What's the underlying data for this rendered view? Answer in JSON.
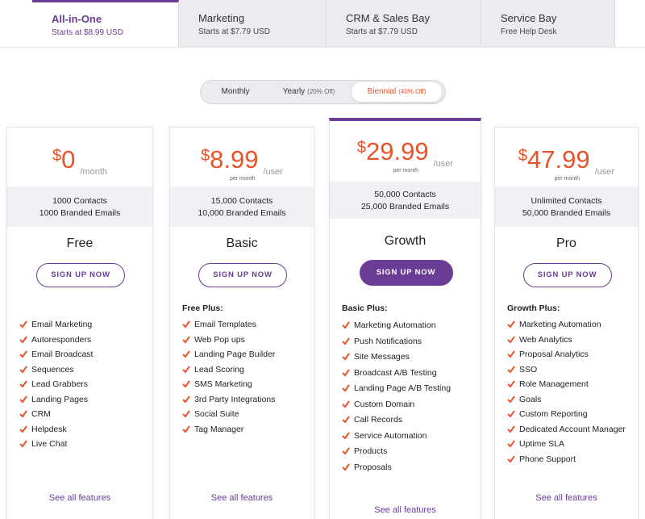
{
  "tabs": [
    {
      "title": "All-in-One",
      "subtitle": "Starts at $8.99 USD"
    },
    {
      "title": "Marketing",
      "subtitle": "Starts at $7.79 USD"
    },
    {
      "title": "CRM & Sales Bay",
      "subtitle": "Starts at $7.79 USD"
    },
    {
      "title": "Service Bay",
      "subtitle": "Free Help Desk"
    }
  ],
  "billing": [
    {
      "label": "Monthly"
    },
    {
      "label": "Yearly",
      "discount": "(20% Off)"
    },
    {
      "label": "Biennial",
      "discount": "(40% Off)"
    }
  ],
  "plans": [
    {
      "currency": "$",
      "price": "0",
      "unit": "/month",
      "contacts": "1000 Contacts",
      "emails": "1000 Branded Emails",
      "name": "Free",
      "button": "SIGN UP NOW",
      "features": [
        "Email Marketing",
        "Autoresponders",
        "Email Broadcast",
        "Sequences",
        "Lead Grabbers",
        "Landing Pages",
        "CRM",
        "Helpdesk",
        "Live Chat"
      ],
      "link": "See all features"
    },
    {
      "currency": "$",
      "price": "8.99",
      "unit": "/user",
      "per": "per month",
      "contacts": "15,000 Contacts",
      "emails": "10,000 Branded Emails",
      "name": "Basic",
      "button": "SIGN UP NOW",
      "heading": "Free Plus:",
      "features": [
        "Email Templates",
        "Web Pop ups",
        "Landing Page Builder",
        "Lead Scoring",
        "SMS Marketing",
        "3rd Party Integrations",
        "Social Suite",
        "Tag Manager"
      ],
      "link": "See all features"
    },
    {
      "currency": "$",
      "price": "29.99",
      "unit": "/user",
      "per": "per month",
      "contacts": "50,000 Contacts",
      "emails": "25,000 Branded Emails",
      "name": "Growth",
      "button": "SIGN UP NOW",
      "heading": "Basic Plus:",
      "features": [
        "Marketing Automation",
        "Push Notifications",
        "Site Messages",
        "Broadcast A/B Testing",
        "Landing Page A/B Testing",
        "Custom Domain",
        "Call Records",
        "Service Automation",
        "Products",
        "Proposals"
      ],
      "link": "See all features"
    },
    {
      "currency": "$",
      "price": "47.99",
      "unit": "/user",
      "per": "per month",
      "contacts": "Unlimited Contacts",
      "emails": "50,000 Branded Emails",
      "name": "Pro",
      "button": "SIGN UP NOW",
      "heading": "Growth Plus:",
      "features": [
        "Marketing Automation",
        "Web Analytics",
        "Proposal Analytics",
        "SSO",
        "Role Management",
        "Goals",
        "Custom Reporting",
        "Dedicated Account Manager",
        "Uptime SLA",
        "Phone Support"
      ],
      "link": "See all features"
    }
  ]
}
